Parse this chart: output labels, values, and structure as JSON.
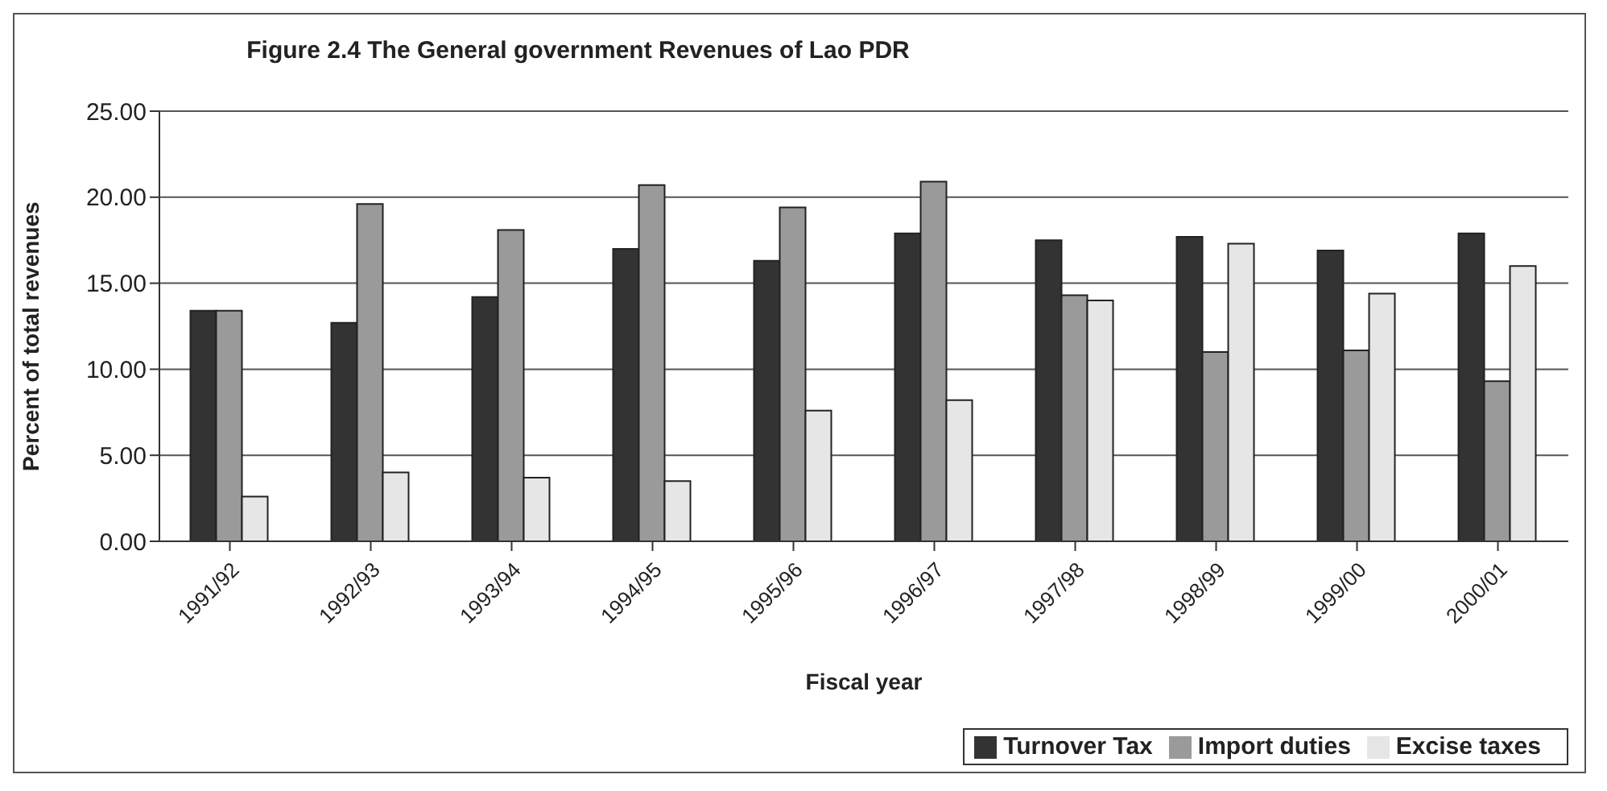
{
  "chart_data": {
    "type": "bar",
    "title": "Figure 2.4 The General government Revenues of Lao PDR",
    "xlabel": "Fiscal year",
    "ylabel": "Percent of total revenues",
    "categories": [
      "1991/92",
      "1992/93",
      "1993/94",
      "1994/95",
      "1995/96",
      "1996/97",
      "1997/98",
      "1998/99",
      "1999/00",
      "2000/01"
    ],
    "series": [
      {
        "name": "Turnover Tax",
        "color": "#333333",
        "values": [
          13.4,
          12.7,
          14.2,
          17.0,
          16.3,
          17.9,
          17.5,
          17.7,
          16.9,
          17.9
        ]
      },
      {
        "name": "Import duties",
        "color": "#9a9a9a",
        "values": [
          13.4,
          19.6,
          18.1,
          20.7,
          19.4,
          20.9,
          14.3,
          11.0,
          11.1,
          9.3
        ]
      },
      {
        "name": "Excise taxes",
        "color": "#e6e6e6",
        "values": [
          2.6,
          4.0,
          3.7,
          3.5,
          7.6,
          8.2,
          14.0,
          17.3,
          14.4,
          16.0
        ]
      }
    ],
    "ylim": [
      0,
      25
    ],
    "yticks": [
      {
        "value": 0,
        "label": "0.00"
      },
      {
        "value": 5,
        "label": "5.00"
      },
      {
        "value": 10,
        "label": "10.00"
      },
      {
        "value": 15,
        "label": "15.00"
      },
      {
        "value": 20,
        "label": "20.00"
      },
      {
        "value": 25,
        "label": "25.00"
      }
    ],
    "grid": "y",
    "legend": "bottom right"
  }
}
